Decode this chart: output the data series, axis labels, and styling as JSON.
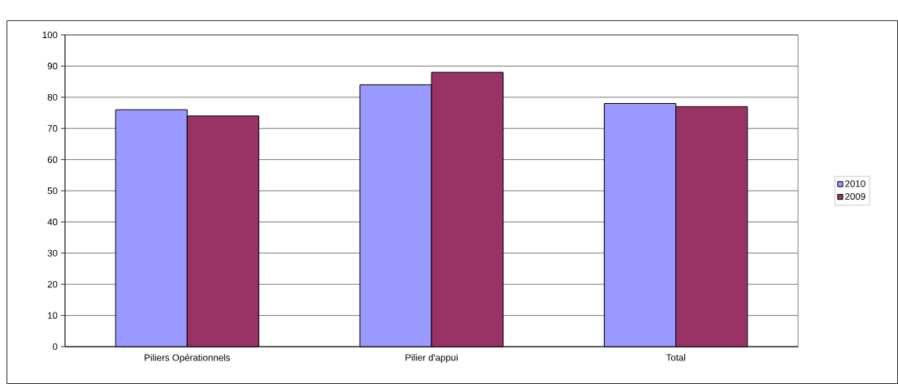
{
  "chart_data": {
    "type": "bar",
    "categories": [
      "Piliers Opérationnels",
      "Pilier d'appui",
      "Total"
    ],
    "series": [
      {
        "name": "2010",
        "color": "#9999ff",
        "values": [
          76,
          84,
          78
        ]
      },
      {
        "name": "2009",
        "color": "#993366",
        "values": [
          74,
          88,
          77
        ]
      }
    ],
    "ylim": [
      0,
      100
    ],
    "yticks": [
      0,
      10,
      20,
      30,
      40,
      50,
      60,
      70,
      80,
      90,
      100
    ],
    "grid": "y",
    "legend": "right"
  }
}
